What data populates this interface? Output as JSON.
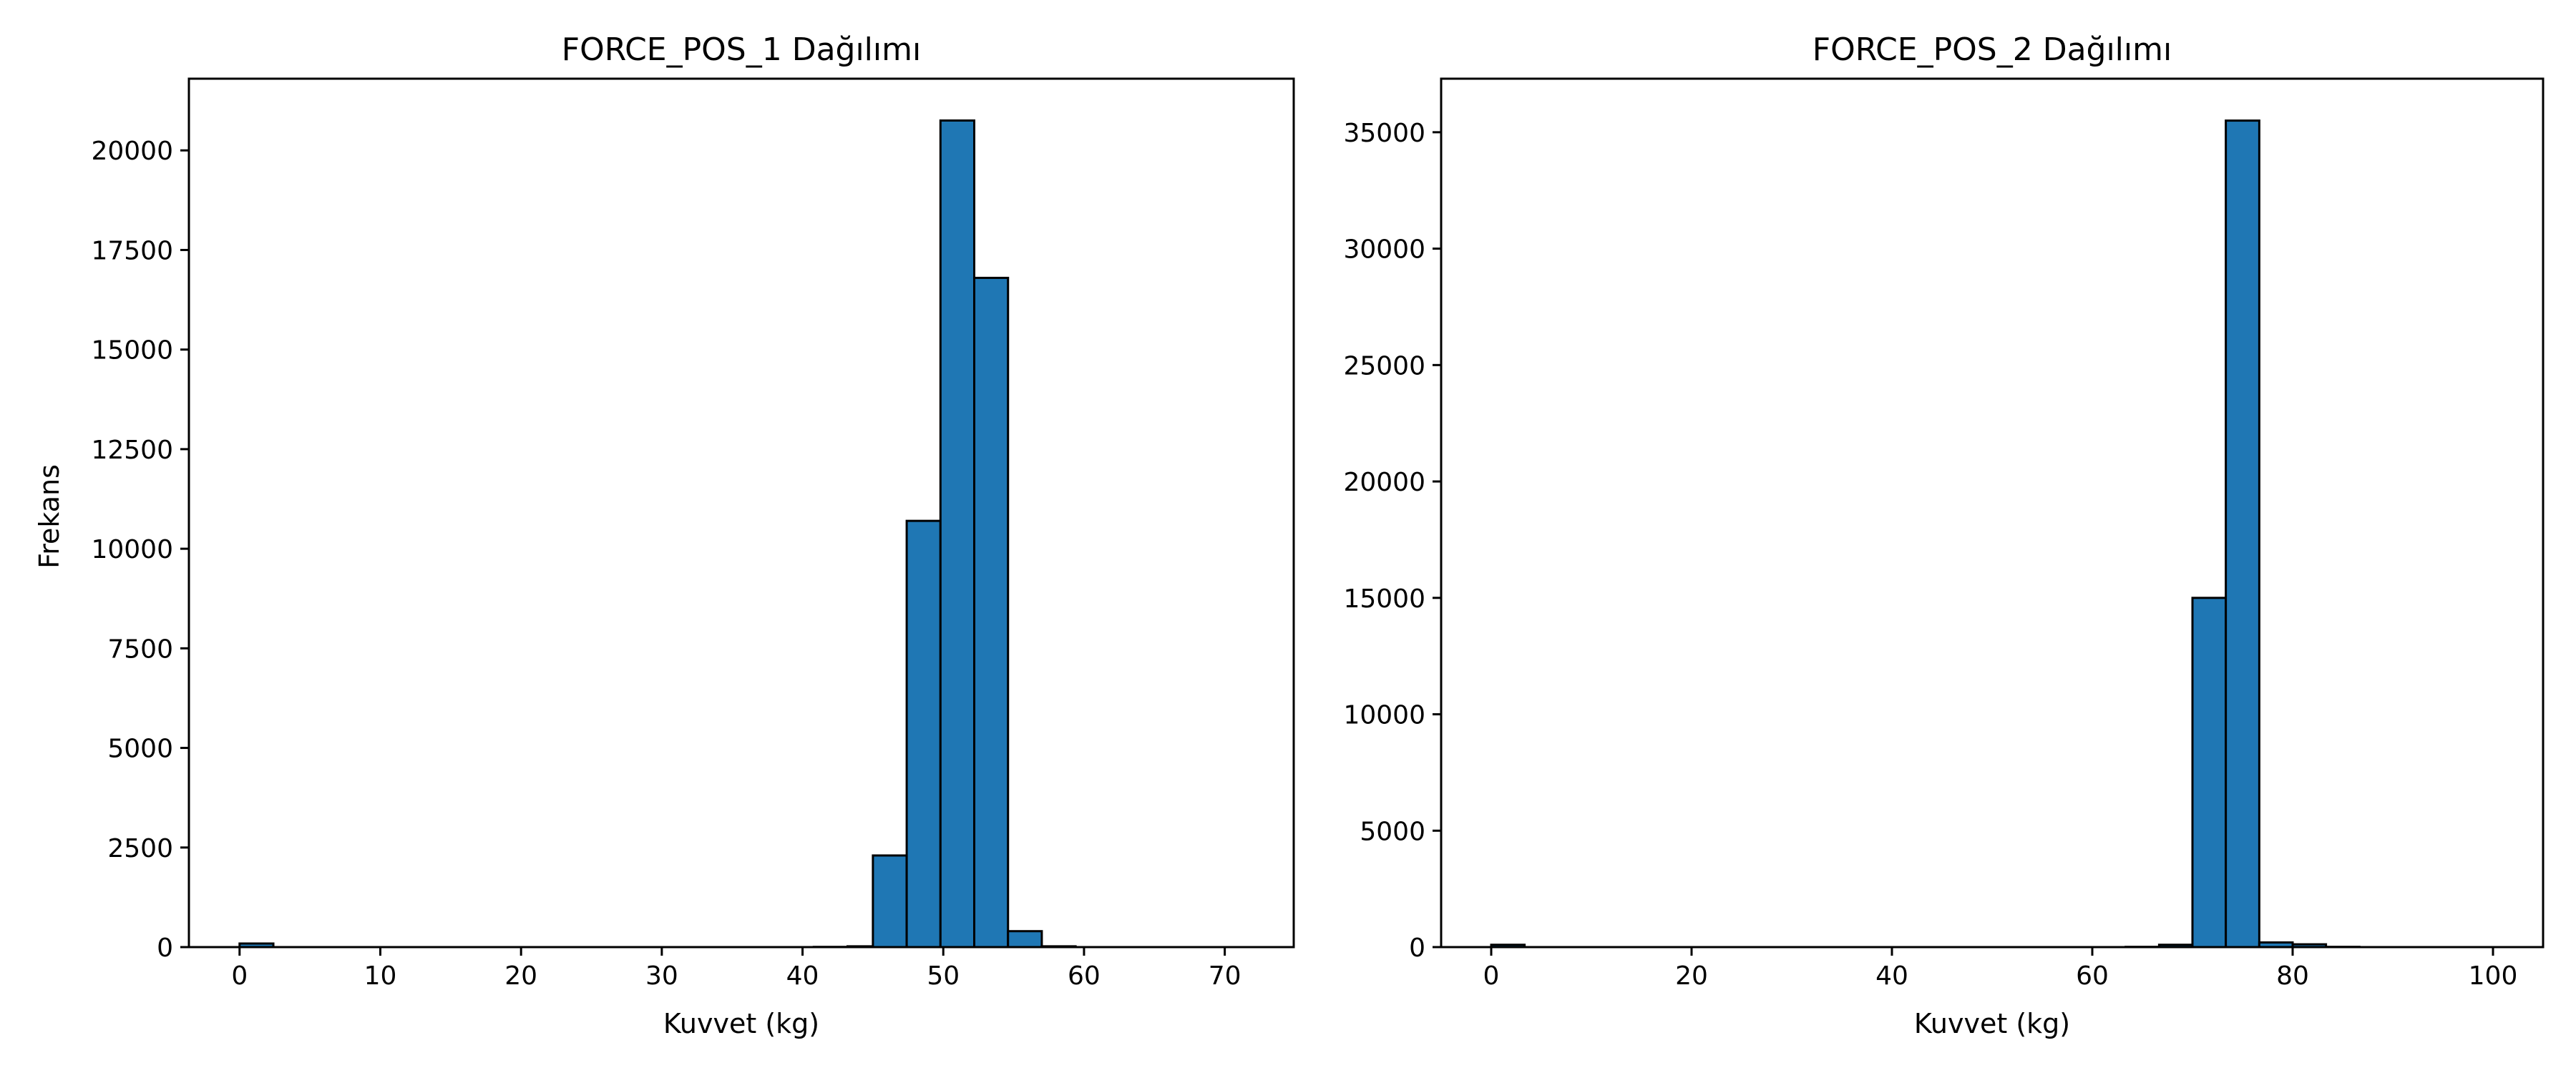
{
  "chart_data": [
    {
      "type": "bar",
      "title": "FORCE_POS_1 Dağılımı",
      "xlabel": "Kuvvet (kg)",
      "ylabel": "Frekans",
      "xlim": [
        -3.6,
        74.9
      ],
      "ylim": [
        0,
        21800
      ],
      "xticks": [
        0,
        10,
        20,
        30,
        40,
        50,
        60,
        70
      ],
      "yticks": [
        0,
        2500,
        5000,
        7500,
        10000,
        12500,
        15000,
        17500,
        20000
      ],
      "bar_color": "#1f77b4",
      "edge_color": "#000000",
      "bins": [
        {
          "x0": 0.0,
          "x1": 2.4,
          "value": 90
        },
        {
          "x0": 2.4,
          "x1": 4.8,
          "value": 0
        },
        {
          "x0": 4.8,
          "x1": 7.2,
          "value": 0
        },
        {
          "x0": 7.2,
          "x1": 9.6,
          "value": 0
        },
        {
          "x0": 9.6,
          "x1": 12.0,
          "value": 0
        },
        {
          "x0": 12.0,
          "x1": 14.4,
          "value": 0
        },
        {
          "x0": 14.4,
          "x1": 16.8,
          "value": 0
        },
        {
          "x0": 16.8,
          "x1": 19.2,
          "value": 0
        },
        {
          "x0": 19.2,
          "x1": 21.6,
          "value": 0
        },
        {
          "x0": 21.6,
          "x1": 24.0,
          "value": 0
        },
        {
          "x0": 24.0,
          "x1": 26.4,
          "value": 0
        },
        {
          "x0": 26.4,
          "x1": 28.8,
          "value": 0
        },
        {
          "x0": 28.8,
          "x1": 31.2,
          "value": 0
        },
        {
          "x0": 31.2,
          "x1": 33.6,
          "value": 0
        },
        {
          "x0": 33.6,
          "x1": 36.0,
          "value": 0
        },
        {
          "x0": 36.0,
          "x1": 38.4,
          "value": 0
        },
        {
          "x0": 38.4,
          "x1": 40.8,
          "value": 0
        },
        {
          "x0": 40.8,
          "x1": 43.2,
          "value": 5
        },
        {
          "x0": 43.2,
          "x1": 45.0,
          "value": 20
        },
        {
          "x0": 45.0,
          "x1": 47.4,
          "value": 2300
        },
        {
          "x0": 47.4,
          "x1": 49.8,
          "value": 10700
        },
        {
          "x0": 49.8,
          "x1": 52.2,
          "value": 20750
        },
        {
          "x0": 52.2,
          "x1": 54.6,
          "value": 16800
        },
        {
          "x0": 54.6,
          "x1": 57.0,
          "value": 400
        },
        {
          "x0": 57.0,
          "x1": 59.4,
          "value": 20
        },
        {
          "x0": 59.4,
          "x1": 61.8,
          "value": 0
        },
        {
          "x0": 61.8,
          "x1": 64.2,
          "value": 0
        },
        {
          "x0": 64.2,
          "x1": 66.6,
          "value": 0
        },
        {
          "x0": 66.6,
          "x1": 69.0,
          "value": 0
        },
        {
          "x0": 69.0,
          "x1": 71.4,
          "value": 0
        }
      ]
    },
    {
      "type": "bar",
      "title": "FORCE_POS_2 Dağılımı",
      "xlabel": "Kuvvet (kg)",
      "ylabel": "",
      "xlim": [
        -5.0,
        105.0
      ],
      "ylim": [
        0,
        37300
      ],
      "xticks": [
        0,
        20,
        40,
        60,
        80,
        100
      ],
      "yticks": [
        0,
        5000,
        10000,
        15000,
        20000,
        25000,
        30000,
        35000
      ],
      "bar_color": "#1f77b4",
      "edge_color": "#000000",
      "bins": [
        {
          "x0": 0.0,
          "x1": 3.33,
          "value": 100
        },
        {
          "x0": 3.33,
          "x1": 6.67,
          "value": 0
        },
        {
          "x0": 6.67,
          "x1": 10.0,
          "value": 0
        },
        {
          "x0": 10.0,
          "x1": 13.33,
          "value": 0
        },
        {
          "x0": 13.33,
          "x1": 16.67,
          "value": 0
        },
        {
          "x0": 16.67,
          "x1": 20.0,
          "value": 0
        },
        {
          "x0": 20.0,
          "x1": 23.33,
          "value": 0
        },
        {
          "x0": 23.33,
          "x1": 26.67,
          "value": 0
        },
        {
          "x0": 26.67,
          "x1": 30.0,
          "value": 0
        },
        {
          "x0": 30.0,
          "x1": 33.33,
          "value": 0
        },
        {
          "x0": 33.33,
          "x1": 36.67,
          "value": 0
        },
        {
          "x0": 36.67,
          "x1": 40.0,
          "value": 0
        },
        {
          "x0": 40.0,
          "x1": 43.33,
          "value": 0
        },
        {
          "x0": 43.33,
          "x1": 46.67,
          "value": 0
        },
        {
          "x0": 46.67,
          "x1": 50.0,
          "value": 0
        },
        {
          "x0": 50.0,
          "x1": 53.33,
          "value": 0
        },
        {
          "x0": 53.33,
          "x1": 56.67,
          "value": 0
        },
        {
          "x0": 56.67,
          "x1": 60.0,
          "value": 0
        },
        {
          "x0": 60.0,
          "x1": 63.33,
          "value": 0
        },
        {
          "x0": 63.33,
          "x1": 66.67,
          "value": 10
        },
        {
          "x0": 66.67,
          "x1": 70.0,
          "value": 100
        },
        {
          "x0": 70.0,
          "x1": 73.33,
          "value": 15000
        },
        {
          "x0": 73.33,
          "x1": 76.67,
          "value": 35500
        },
        {
          "x0": 76.67,
          "x1": 80.0,
          "value": 200
        },
        {
          "x0": 80.0,
          "x1": 83.33,
          "value": 120
        },
        {
          "x0": 83.33,
          "x1": 86.67,
          "value": 10
        },
        {
          "x0": 86.67,
          "x1": 90.0,
          "value": 0
        },
        {
          "x0": 90.0,
          "x1": 93.33,
          "value": 0
        },
        {
          "x0": 93.33,
          "x1": 96.67,
          "value": 0
        },
        {
          "x0": 96.67,
          "x1": 100.0,
          "value": 0
        }
      ]
    }
  ]
}
